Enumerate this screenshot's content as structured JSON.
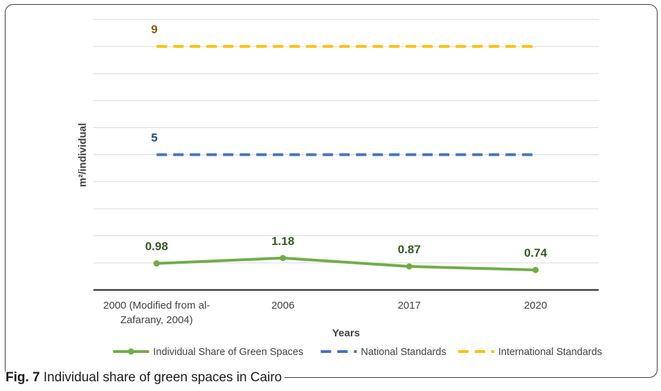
{
  "chart_data": {
    "type": "line",
    "categories": [
      "2000 (Modified from al-Zafarany, 2004)",
      "2006",
      "2017",
      "2020"
    ],
    "category_lines": [
      [
        "2000 (Modified from al-",
        "Zafarany, 2004)"
      ],
      [
        "2006"
      ],
      [
        "2017"
      ],
      [
        "2020"
      ]
    ],
    "xlabel": "Years",
    "ylabel": "m²/individual",
    "ylim": [
      0,
      10
    ],
    "grid": true,
    "legend_position": "bottom",
    "series": [
      {
        "name": "Individual Share of Green Spaces",
        "values": [
          0.98,
          1.18,
          0.87,
          0.74
        ],
        "labels": [
          "0.98",
          "1.18",
          "0.87",
          "0.74"
        ],
        "color": "#70ad47",
        "style": "solid",
        "markers": true,
        "label_color": "#375623"
      },
      {
        "name": "National Standards",
        "values": [
          5,
          5,
          5,
          5
        ],
        "labels": [
          "5",
          "",
          "",
          ""
        ],
        "color": "#4472c4",
        "style": "dashed",
        "markers": false,
        "label_color": "#1f4e79"
      },
      {
        "name": "International Standards",
        "values": [
          9,
          9,
          9,
          9
        ],
        "labels": [
          "9",
          "",
          "",
          ""
        ],
        "color": "#ffc000",
        "style": "dashed",
        "markers": false,
        "label_color": "#7f6000"
      }
    ]
  },
  "caption": {
    "label": "Fig. 7",
    "text": " Individual share of green spaces in Cairo"
  }
}
